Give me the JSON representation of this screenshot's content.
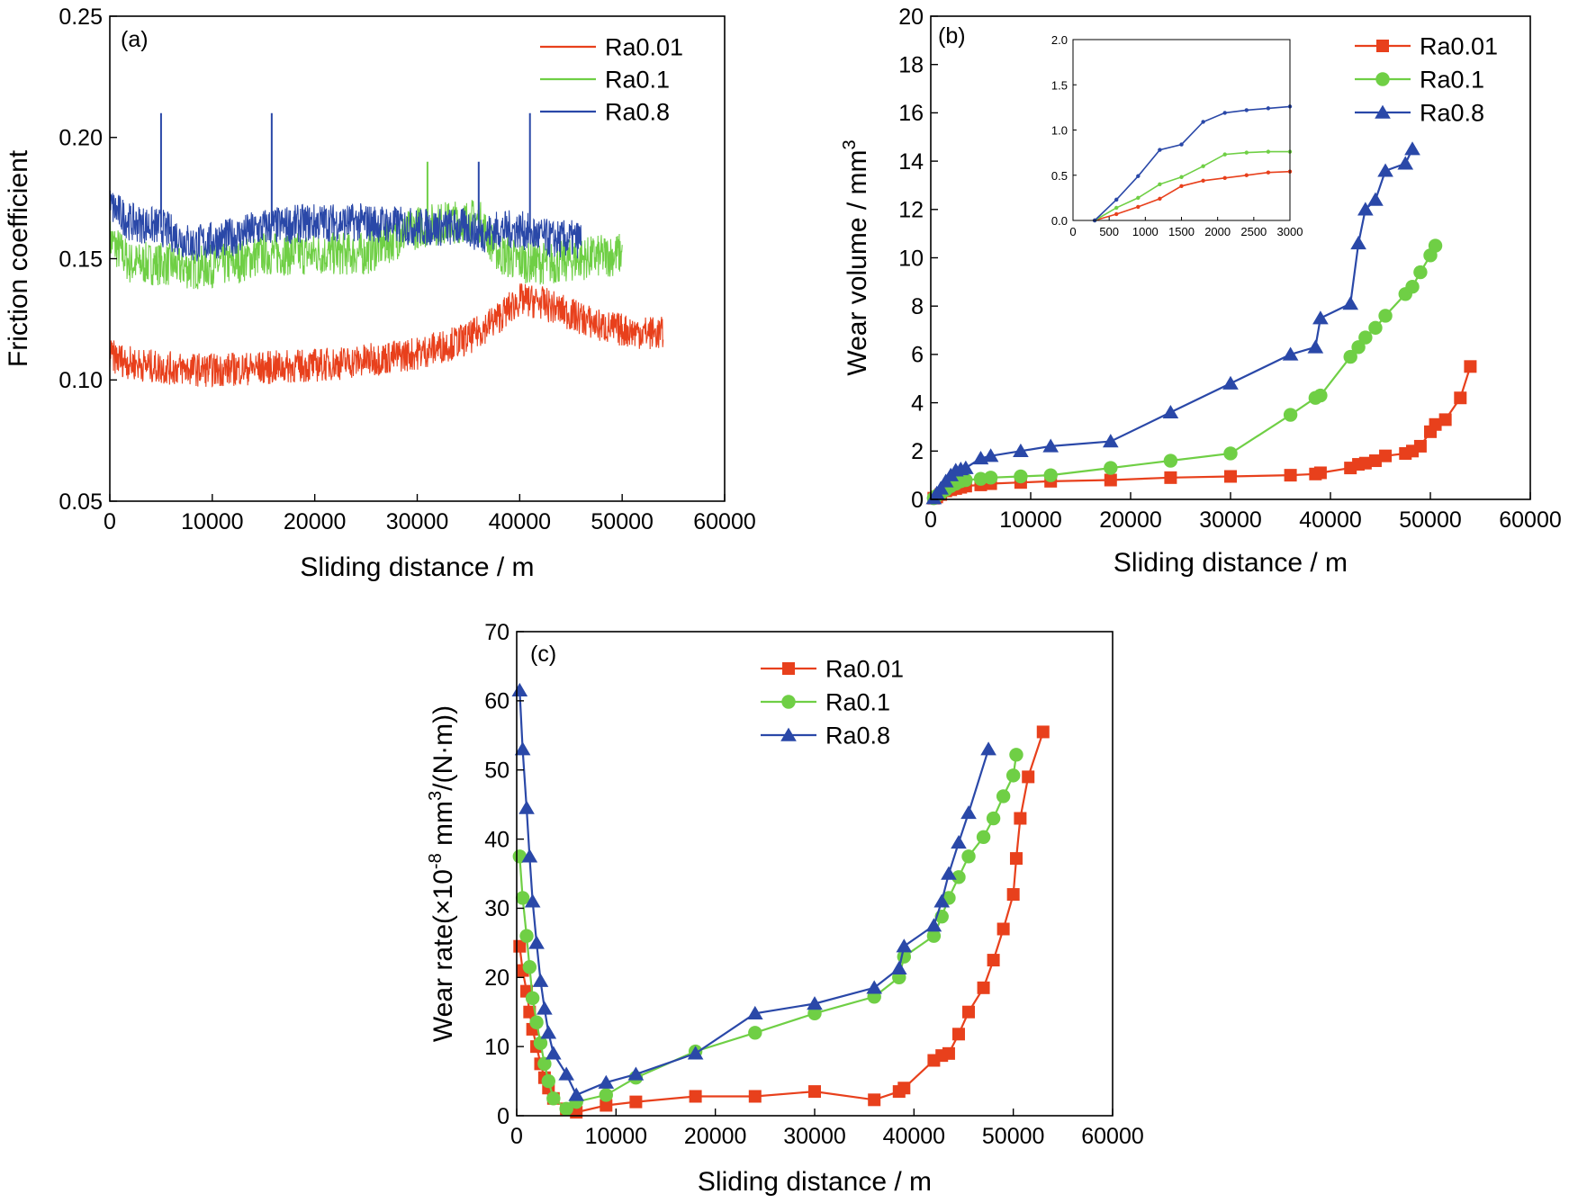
{
  "colors": {
    "red": "#e8401c",
    "green": "#6fcf45",
    "blue": "#2a48a8",
    "axis": "#000000"
  },
  "chart_data": [
    {
      "type": "line",
      "panel_label": "(a)",
      "xlabel": "Sliding distance / m",
      "ylabel": "Friction coefficient",
      "xlim": [
        0,
        60000
      ],
      "ylim": [
        0.05,
        0.25
      ],
      "xticks": [
        "0",
        "10000",
        "20000",
        "30000",
        "40000",
        "50000",
        "60000"
      ],
      "yticks": [
        "0.05",
        "0.10",
        "0.15",
        "0.20",
        "0.25"
      ],
      "legend": "top-right",
      "series": [
        {
          "name": "Ra0.01",
          "color": "#e8401c",
          "x": [
            0,
            2000,
            5000,
            10000,
            15000,
            20000,
            25000,
            30000,
            35000,
            38000,
            40000,
            42000,
            45000,
            48000,
            51000,
            54000
          ],
          "y": [
            0.11,
            0.107,
            0.105,
            0.104,
            0.105,
            0.106,
            0.108,
            0.111,
            0.117,
            0.126,
            0.133,
            0.132,
            0.127,
            0.122,
            0.12,
            0.119
          ],
          "noise": 0.007
        },
        {
          "name": "Ra0.1",
          "color": "#6fcf45",
          "x": [
            0,
            2000,
            5000,
            8000,
            12000,
            15000,
            20000,
            25000,
            30000,
            33000,
            36000,
            38000,
            40000,
            43000,
            46000,
            50000
          ],
          "y": [
            0.158,
            0.148,
            0.148,
            0.146,
            0.148,
            0.152,
            0.152,
            0.152,
            0.163,
            0.165,
            0.166,
            0.152,
            0.149,
            0.148,
            0.15,
            0.152
          ],
          "noise": 0.009
        },
        {
          "name": "Ra0.8",
          "color": "#2a48a8",
          "x": [
            0,
            2000,
            5000,
            8000,
            12000,
            15000,
            20000,
            25000,
            30000,
            33000,
            35000,
            36000,
            38000,
            40000,
            43000,
            46000
          ],
          "y": [
            0.172,
            0.165,
            0.163,
            0.156,
            0.159,
            0.163,
            0.165,
            0.165,
            0.163,
            0.163,
            0.163,
            0.16,
            0.162,
            0.162,
            0.158,
            0.158
          ],
          "noise": 0.008
        }
      ],
      "spikes": [
        {
          "series": "Ra0.8",
          "x": 5000,
          "y": 0.21
        },
        {
          "series": "Ra0.8",
          "x": 15800,
          "y": 0.21
        },
        {
          "series": "Ra0.8",
          "x": 41000,
          "y": 0.21
        },
        {
          "series": "Ra0.8",
          "x": 36000,
          "y": 0.19
        },
        {
          "series": "Ra0.1",
          "x": 31000,
          "y": 0.19
        }
      ]
    },
    {
      "type": "line",
      "panel_label": "(b)",
      "xlabel": "Sliding distance / m",
      "ylabel": "Wear volume / mm",
      "ylabel_sup": "3",
      "xlim": [
        0,
        60000
      ],
      "ylim": [
        0,
        20
      ],
      "xticks": [
        "0",
        "10000",
        "20000",
        "30000",
        "40000",
        "50000",
        "60000"
      ],
      "yticks": [
        "0",
        "2",
        "4",
        "6",
        "8",
        "10",
        "12",
        "14",
        "16",
        "18",
        "20"
      ],
      "legend": "top-right",
      "series": [
        {
          "name": "Ra0.01",
          "color": "#e8401c",
          "marker": "square",
          "x": [
            300,
            600,
            1000,
            1500,
            2000,
            2500,
            3000,
            3500,
            5000,
            6000,
            9000,
            12000,
            18000,
            24000,
            30000,
            36000,
            38500,
            39000,
            42000,
            42800,
            43500,
            44500,
            45500,
            47500,
            48200,
            49000,
            50000,
            50500,
            51500,
            53000,
            54000
          ],
          "y": [
            0.05,
            0.1,
            0.2,
            0.35,
            0.4,
            0.45,
            0.5,
            0.55,
            0.6,
            0.65,
            0.7,
            0.75,
            0.8,
            0.9,
            0.95,
            1.0,
            1.05,
            1.1,
            1.3,
            1.45,
            1.5,
            1.6,
            1.8,
            1.9,
            2.0,
            2.2,
            2.8,
            3.1,
            3.3,
            4.2,
            5.5
          ]
        },
        {
          "name": "Ra0.1",
          "color": "#6fcf45",
          "marker": "circle",
          "x": [
            300,
            600,
            1000,
            1500,
            2000,
            2500,
            3000,
            3500,
            5000,
            6000,
            9000,
            12000,
            18000,
            24000,
            30000,
            36000,
            38500,
            39000,
            42000,
            42800,
            43500,
            44500,
            45500,
            47500,
            48200,
            49000,
            50000,
            50500
          ],
          "y": [
            0.05,
            0.15,
            0.25,
            0.4,
            0.55,
            0.65,
            0.75,
            0.8,
            0.85,
            0.9,
            0.95,
            1.0,
            1.3,
            1.6,
            1.9,
            3.5,
            4.2,
            4.3,
            5.9,
            6.3,
            6.7,
            7.1,
            7.6,
            8.5,
            8.8,
            9.4,
            10.1,
            10.5
          ]
        },
        {
          "name": "Ra0.8",
          "color": "#2a48a8",
          "marker": "triangle",
          "x": [
            300,
            600,
            1000,
            1500,
            2000,
            2500,
            3000,
            3500,
            5000,
            6000,
            9000,
            12000,
            18000,
            24000,
            30000,
            36000,
            38500,
            39000,
            42000,
            42800,
            43500,
            44500,
            45500,
            47500,
            48200
          ],
          "y": [
            0.05,
            0.25,
            0.45,
            0.75,
            1.0,
            1.2,
            1.25,
            1.3,
            1.7,
            1.8,
            2.0,
            2.2,
            2.4,
            3.6,
            4.8,
            6.0,
            6.3,
            7.5,
            8.1,
            10.6,
            12.0,
            12.4,
            13.6,
            13.9,
            14.5
          ]
        }
      ],
      "inset": {
        "xlim": [
          0,
          3000
        ],
        "ylim": [
          0,
          2.0
        ],
        "xticks": [
          "0",
          "500",
          "1000",
          "1500",
          "2000",
          "2500",
          "3000"
        ],
        "yticks": [
          "0.0",
          "0.5",
          "1.0",
          "1.5",
          "2.0"
        ],
        "series": [
          {
            "name": "Ra0.01",
            "color": "#e8401c",
            "x": [
              300,
              600,
              900,
              1200,
              1500,
              1800,
              2100,
              2400,
              2700,
              3000
            ],
            "y": [
              0.0,
              0.07,
              0.15,
              0.24,
              0.38,
              0.44,
              0.47,
              0.5,
              0.53,
              0.54
            ]
          },
          {
            "name": "Ra0.1",
            "color": "#6fcf45",
            "x": [
              300,
              600,
              900,
              1200,
              1500,
              1800,
              2100,
              2400,
              2700,
              3000
            ],
            "y": [
              0.0,
              0.14,
              0.25,
              0.4,
              0.48,
              0.6,
              0.73,
              0.75,
              0.76,
              0.76
            ]
          },
          {
            "name": "Ra0.8",
            "color": "#2a48a8",
            "x": [
              300,
              600,
              900,
              1200,
              1500,
              1800,
              2100,
              2400,
              2700,
              3000
            ],
            "y": [
              0.0,
              0.23,
              0.49,
              0.78,
              0.84,
              1.09,
              1.19,
              1.22,
              1.24,
              1.26
            ]
          }
        ]
      }
    },
    {
      "type": "line",
      "panel_label": "(c)",
      "xlabel": "Sliding distance / m",
      "ylabel_parts": [
        "Wear rate(×10",
        "-8",
        " mm",
        "3",
        "/(N·m))"
      ],
      "xlim": [
        0,
        60000
      ],
      "ylim": [
        0,
        70
      ],
      "xticks": [
        "0",
        "10000",
        "20000",
        "30000",
        "40000",
        "50000",
        "60000"
      ],
      "yticks": [
        "0",
        "10",
        "20",
        "30",
        "40",
        "50",
        "60",
        "70"
      ],
      "legend": "top-right",
      "series": [
        {
          "name": "Ra0.01",
          "color": "#e8401c",
          "marker": "square",
          "x": [
            300,
            600,
            1000,
            1300,
            1600,
            2000,
            2400,
            2800,
            3200,
            3700,
            5000,
            6000,
            9000,
            12000,
            18000,
            24000,
            30000,
            36000,
            38500,
            39000,
            42000,
            42800,
            43500,
            44500,
            45500,
            47000,
            48000,
            49000,
            50000,
            50300,
            50700,
            51500,
            53000
          ],
          "y": [
            24.5,
            21.0,
            18.0,
            15.0,
            12.5,
            10.0,
            7.5,
            5.5,
            4.0,
            2.5,
            1.0,
            0.5,
            1.5,
            2.0,
            2.8,
            2.8,
            3.5,
            2.3,
            3.5,
            4.0,
            8.0,
            8.7,
            9.0,
            11.8,
            15.0,
            18.5,
            22.5,
            27.0,
            32.0,
            37.2,
            43.0,
            49.0,
            55.5
          ]
        },
        {
          "name": "Ra0.1",
          "color": "#6fcf45",
          "marker": "circle",
          "x": [
            300,
            600,
            1000,
            1300,
            1600,
            2000,
            2400,
            2800,
            3200,
            3700,
            5000,
            6000,
            9000,
            12000,
            18000,
            24000,
            30000,
            36000,
            38500,
            39000,
            42000,
            42800,
            43500,
            44500,
            45500,
            47000,
            48000,
            49000,
            50000,
            50300
          ],
          "y": [
            37.5,
            31.5,
            26.0,
            21.5,
            17.0,
            13.5,
            10.5,
            7.5,
            5.0,
            2.5,
            1.0,
            2.0,
            3.0,
            5.5,
            9.3,
            12.0,
            14.8,
            17.2,
            20.0,
            23.0,
            26.0,
            28.8,
            31.5,
            34.5,
            37.5,
            40.3,
            43.0,
            46.2,
            49.2,
            52.2
          ]
        },
        {
          "name": "Ra0.8",
          "color": "#2a48a8",
          "marker": "triangle",
          "x": [
            300,
            600,
            1000,
            1300,
            1600,
            2000,
            2400,
            2800,
            3200,
            3700,
            5000,
            6000,
            9000,
            12000,
            18000,
            24000,
            30000,
            36000,
            38500,
            39000,
            42000,
            42800,
            43500,
            44500,
            45500,
            47500
          ],
          "y": [
            61.5,
            53.0,
            44.5,
            37.5,
            31.0,
            25.0,
            19.5,
            15.5,
            12.0,
            9.0,
            6.0,
            3.0,
            4.8,
            6.0,
            9.0,
            14.8,
            16.2,
            18.5,
            21.3,
            24.5,
            27.5,
            31.0,
            35.0,
            39.5,
            43.8,
            53.0
          ]
        }
      ]
    }
  ]
}
